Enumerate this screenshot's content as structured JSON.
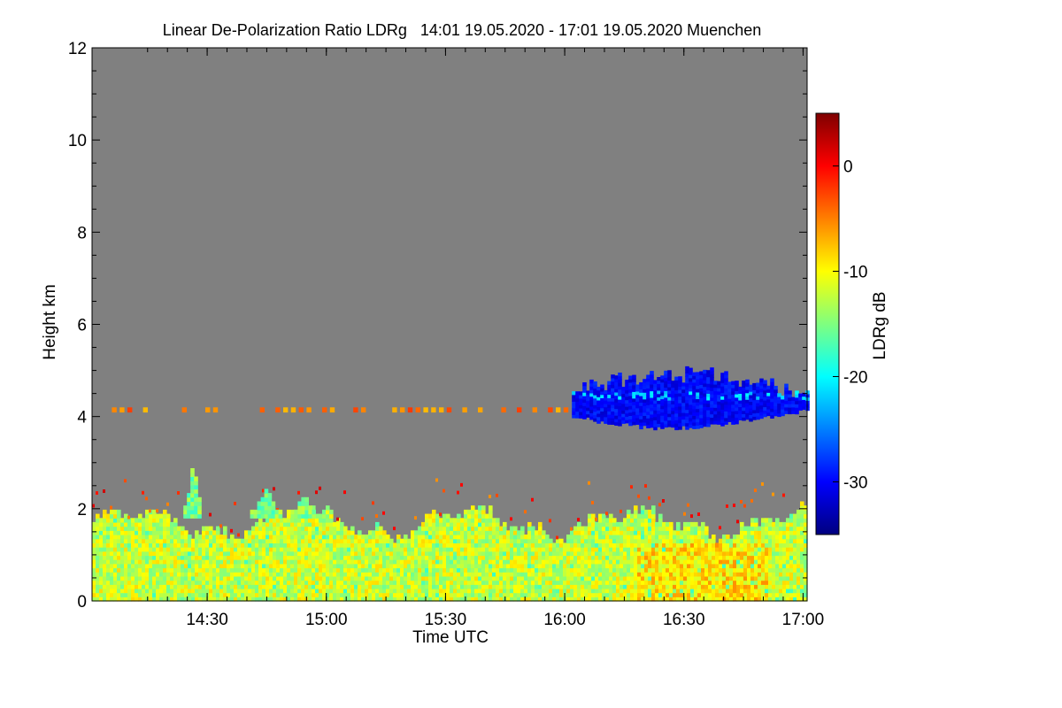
{
  "chart_data": {
    "type": "heatmap",
    "title": "Linear De-Polarization Ratio LDRg   14:01 19.05.2020 - 17:01 19.05.2020 Muenchen",
    "xlabel": "Time UTC",
    "ylabel": "Height km",
    "colorbar_label": "LDRg dB",
    "x_range_hours": [
      14.017,
      17.017
    ],
    "x_ticks": [
      {
        "label": "14:30",
        "value": 14.5
      },
      {
        "label": "15:00",
        "value": 15.0
      },
      {
        "label": "15:30",
        "value": 15.5
      },
      {
        "label": "16:00",
        "value": 16.0
      },
      {
        "label": "16:30",
        "value": 16.5
      },
      {
        "label": "17:00",
        "value": 17.0
      }
    ],
    "y_range_km": [
      0,
      12
    ],
    "y_ticks": [
      {
        "label": "0",
        "value": 0
      },
      {
        "label": "2",
        "value": 2
      },
      {
        "label": "4",
        "value": 4
      },
      {
        "label": "6",
        "value": 6
      },
      {
        "label": "8",
        "value": 8
      },
      {
        "label": "10",
        "value": 10
      },
      {
        "label": "12",
        "value": 12
      }
    ],
    "colorbar_range_db": [
      -35,
      5
    ],
    "colorbar_ticks": [
      {
        "label": "0",
        "value": 0
      },
      {
        "label": "-10",
        "value": -10
      },
      {
        "label": "-20",
        "value": -20
      },
      {
        "label": "-30",
        "value": -30
      }
    ],
    "background_color": "#808080",
    "regions": [
      {
        "name": "boundary-layer",
        "time_start": 14.017,
        "time_end": 17.017,
        "height_bottom": 0.0,
        "height_top_min": 1.3,
        "height_top_max": 2.0,
        "ldr_db": -12
      },
      {
        "name": "convective-plume-1",
        "time_start": 14.4,
        "time_end": 14.47,
        "height_bottom": 1.8,
        "height_top_max": 3.0,
        "ldr_db": -15
      },
      {
        "name": "convective-plume-2",
        "time_start": 14.68,
        "time_end": 14.8,
        "height_bottom": 1.8,
        "height_top_max": 2.4,
        "ldr_db": -15
      },
      {
        "name": "convective-plume-3",
        "time_start": 14.85,
        "time_end": 14.95,
        "height_bottom": 1.8,
        "height_top_max": 2.3,
        "ldr_db": -15
      },
      {
        "name": "ice-cloud-layer",
        "time_start": 16.03,
        "time_end": 17.017,
        "height_bottom": 3.8,
        "height_top_max": 5.2,
        "ldr_db": -30
      },
      {
        "name": "layer-4km-speckle",
        "time_start": 14.1,
        "time_end": 16.0,
        "height_bottom": 4.1,
        "height_top_max": 4.2,
        "ldr_db": -5
      }
    ]
  }
}
